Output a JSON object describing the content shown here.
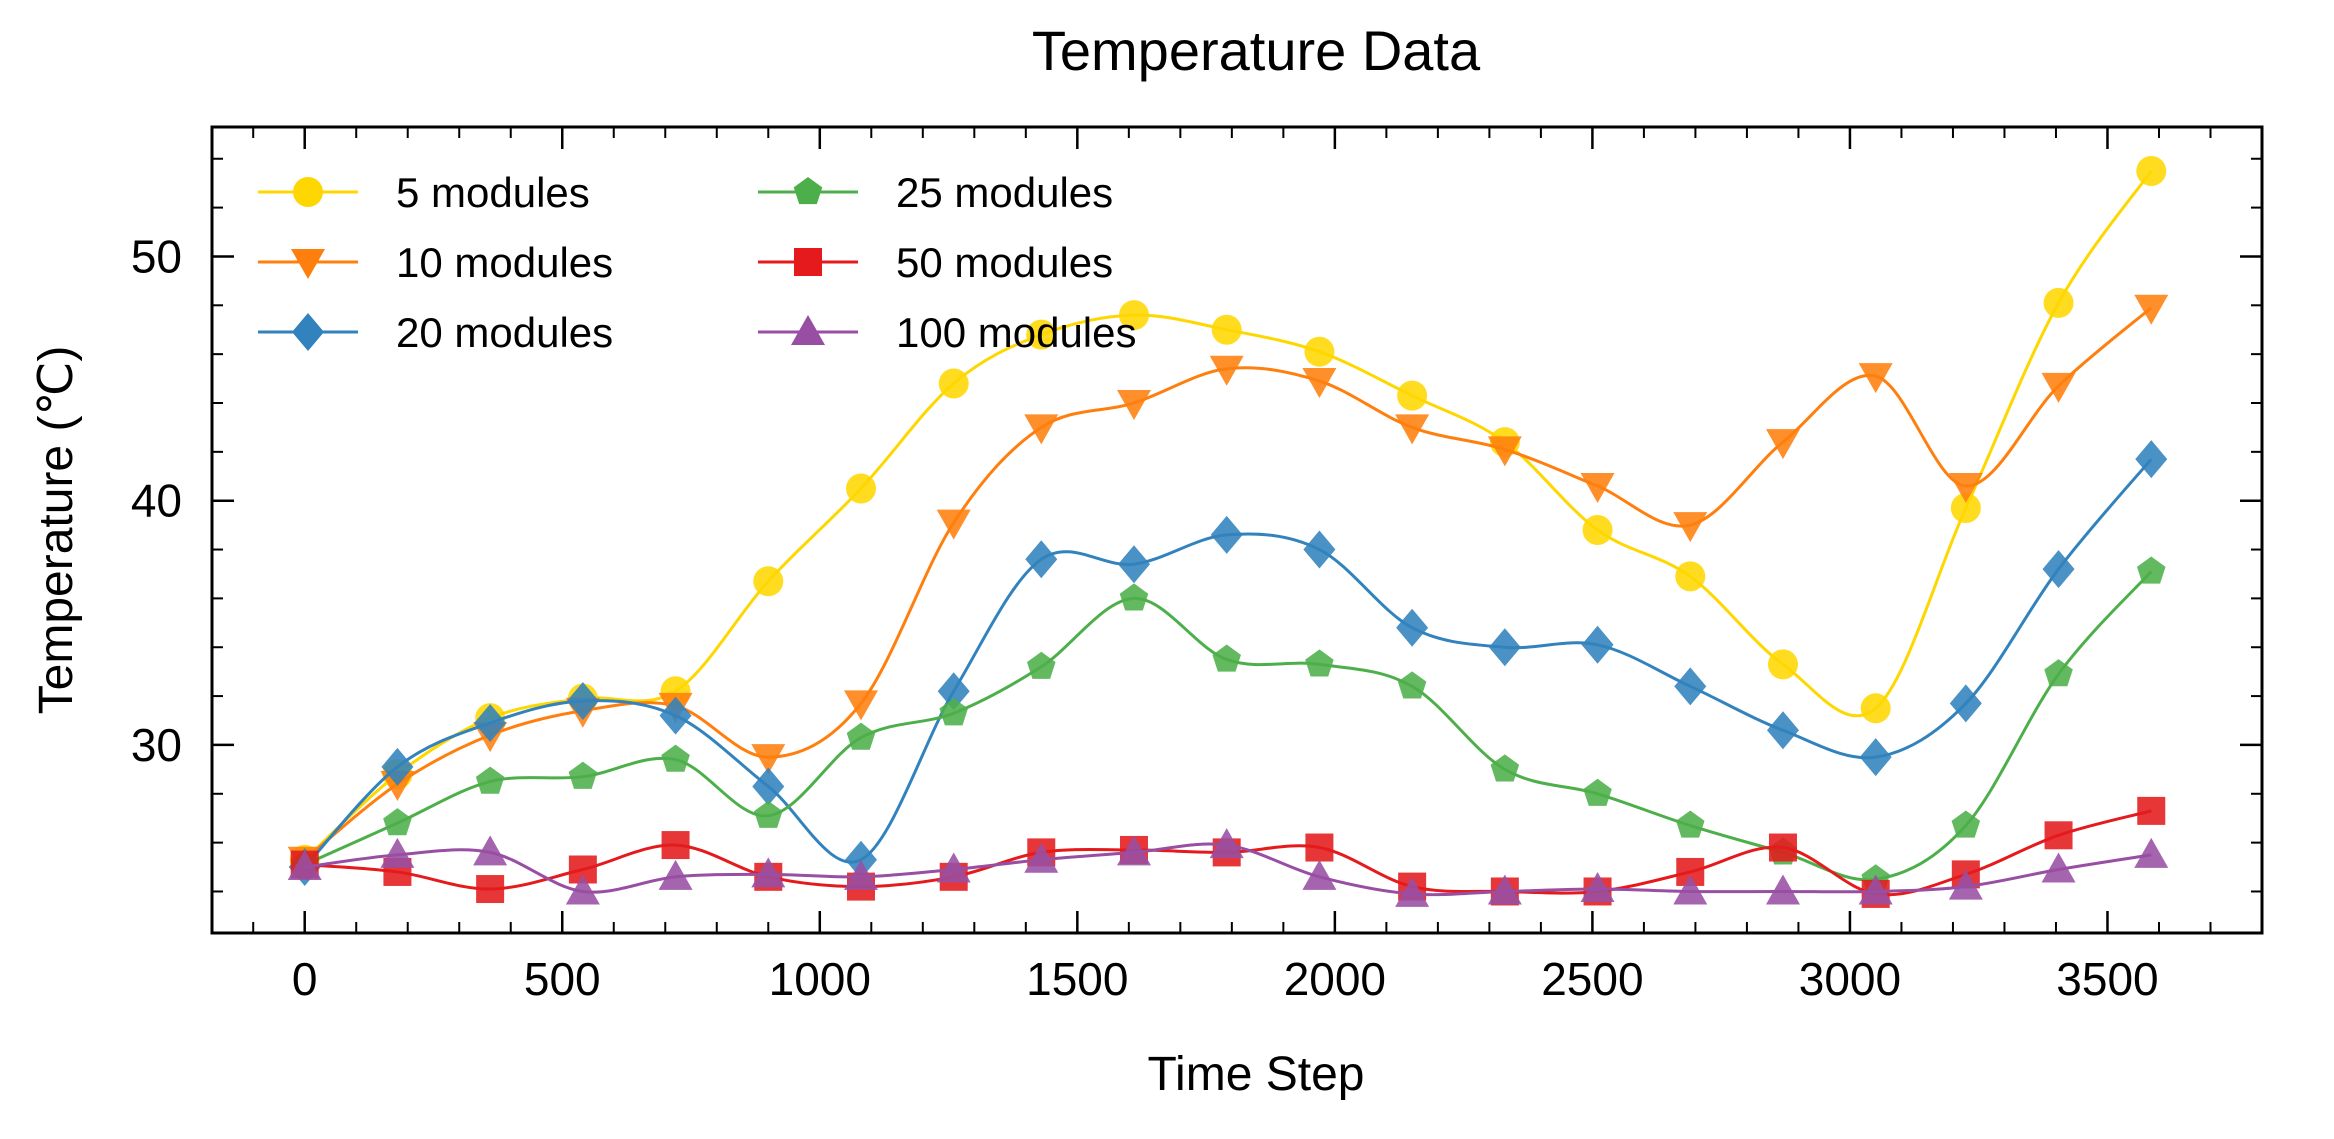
{
  "chart_data": {
    "type": "line",
    "title": "Temperature Data",
    "xlabel": "Time Step",
    "ylabel": "Temperature (℃)",
    "xlim": [
      -180,
      3800
    ],
    "ylim": [
      22.3,
      55.3
    ],
    "xticks": [
      0,
      500,
      1000,
      1500,
      2000,
      2500,
      3000,
      3500
    ],
    "yticks": [
      30,
      40,
      50
    ],
    "grid": false,
    "legend": {
      "position": "top-left",
      "columns": 2
    },
    "marker_x": [
      0,
      180,
      360,
      540,
      720,
      900,
      1080,
      1260,
      1430,
      1610,
      1790,
      1970,
      2150,
      2330,
      2510,
      2690,
      2870,
      3050,
      3225,
      3405,
      3585
    ],
    "series": [
      {
        "name": "5 modules",
        "color": "#FFD700",
        "marker": "circle",
        "values": [
          25.3,
          28.8,
          31.1,
          31.9,
          32.2,
          36.7,
          40.5,
          44.8,
          46.8,
          47.6,
          47.0,
          46.1,
          44.3,
          42.4,
          38.8,
          36.9,
          33.3,
          31.5,
          39.7,
          48.1,
          53.5
        ]
      },
      {
        "name": "10 modules",
        "color": "#FF7F0E",
        "marker": "triangle-down",
        "values": [
          25.3,
          28.4,
          30.4,
          31.4,
          31.6,
          29.5,
          31.7,
          39.1,
          43.0,
          44.0,
          45.4,
          44.9,
          43.0,
          42.1,
          40.6,
          39.0,
          42.4,
          45.1,
          40.6,
          44.7,
          47.9
        ]
      },
      {
        "name": "20 modules",
        "color": "#3182BD",
        "marker": "diamond",
        "values": [
          25.0,
          29.1,
          30.9,
          31.8,
          31.2,
          28.3,
          25.3,
          32.2,
          37.6,
          37.4,
          38.6,
          38.0,
          34.8,
          34.0,
          34.1,
          32.4,
          30.6,
          29.5,
          31.7,
          37.2,
          41.7
        ]
      },
      {
        "name": "25 modules",
        "color": "#4DAF4A",
        "marker": "pentagon",
        "values": [
          25.1,
          26.8,
          28.5,
          28.7,
          29.4,
          27.1,
          30.3,
          31.3,
          33.2,
          36.0,
          33.5,
          33.3,
          32.4,
          29.0,
          28.0,
          26.7,
          25.6,
          24.5,
          26.7,
          32.9,
          37.1
        ]
      },
      {
        "name": "50 modules",
        "color": "#E41A1C",
        "marker": "square",
        "values": [
          25.1,
          24.8,
          24.1,
          24.9,
          25.9,
          24.6,
          24.2,
          24.6,
          25.6,
          25.7,
          25.6,
          25.8,
          24.2,
          24.0,
          24.0,
          24.8,
          25.8,
          23.9,
          24.7,
          26.3,
          27.3
        ]
      },
      {
        "name": "100 modules",
        "color": "#984EA3",
        "marker": "triangle-up",
        "values": [
          25.0,
          25.5,
          25.6,
          24.0,
          24.6,
          24.7,
          24.6,
          24.9,
          25.3,
          25.6,
          25.9,
          24.6,
          23.9,
          24.0,
          24.1,
          24.0,
          24.0,
          24.0,
          24.2,
          24.9,
          25.5
        ]
      }
    ]
  }
}
